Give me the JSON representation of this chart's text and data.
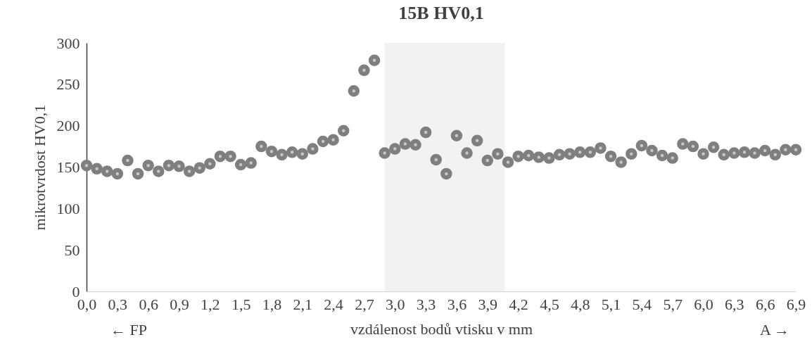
{
  "chart_data": {
    "type": "scatter",
    "title": "15B HV0,1",
    "xlabel": "vzdálenost bodů vtisku v mm",
    "ylabel": "mikrotvrdost HV0,1",
    "annotations": [
      "← FP",
      "A →"
    ],
    "x": [
      0,
      0.1,
      0.2,
      0.3,
      0.4,
      0.5,
      0.6,
      0.7,
      0.8,
      0.9,
      1,
      1.1,
      1.2,
      1.3,
      1.4,
      1.5,
      1.6,
      1.7,
      1.8,
      1.9,
      2,
      2.1,
      2.2,
      2.3,
      2.4,
      2.5,
      2.6,
      2.7,
      2.8,
      2.9,
      3,
      3.1,
      3.2,
      3.3,
      3.4,
      3.5,
      3.6,
      3.7,
      3.8,
      3.9,
      4,
      4.1,
      4.2,
      4.3,
      4.4,
      4.5,
      4.6,
      4.7,
      4.8,
      4.9,
      5,
      5.1,
      5.2,
      5.3,
      5.4,
      5.5,
      5.6,
      5.7,
      5.8,
      5.9,
      6,
      6.1,
      6.2,
      6.3,
      6.4,
      6.5,
      6.6,
      6.7,
      6.8,
      6.9
    ],
    "series": [
      {
        "color": "#7f7f7f",
        "values": [
          152,
          148,
          145,
          142,
          158,
          142,
          152,
          145,
          152,
          151,
          145,
          149,
          154,
          163,
          163,
          153,
          155,
          175,
          169,
          165,
          168,
          166,
          172,
          181,
          183,
          194,
          242,
          267,
          279,
          167,
          172,
          178,
          177,
          192,
          159,
          142,
          188,
          167,
          182,
          158,
          166,
          156,
          163,
          164,
          162,
          161,
          165,
          166,
          168,
          168,
          173,
          163,
          156,
          166,
          176,
          170,
          164,
          161,
          178,
          175,
          166,
          174,
          165,
          167,
          168,
          167,
          170,
          165,
          171,
          171
        ]
      }
    ],
    "bands": [
      {
        "axis": "x",
        "from": 2.9,
        "to": 4.07,
        "color": "#f2f2f2"
      }
    ],
    "xlim": [
      0,
      6.9
    ],
    "xticks": [
      {
        "value": 0,
        "label": "0,0"
      },
      {
        "value": 0.3,
        "label": "0,3"
      },
      {
        "value": 0.6,
        "label": "0,6"
      },
      {
        "value": 0.9,
        "label": "0,9"
      },
      {
        "value": 1.2,
        "label": "1,2"
      },
      {
        "value": 1.5,
        "label": "1,5"
      },
      {
        "value": 1.8,
        "label": "1,8"
      },
      {
        "value": 2.1,
        "label": "2,1"
      },
      {
        "value": 2.4,
        "label": "2,4"
      },
      {
        "value": 2.7,
        "label": "2,7"
      },
      {
        "value": 3,
        "label": "3,0"
      },
      {
        "value": 3.3,
        "label": "3,3"
      },
      {
        "value": 3.6,
        "label": "3,6"
      },
      {
        "value": 3.9,
        "label": "3,9"
      },
      {
        "value": 4.2,
        "label": "4,2"
      },
      {
        "value": 4.5,
        "label": "4,5"
      },
      {
        "value": 4.8,
        "label": "4,8"
      },
      {
        "value": 5.1,
        "label": "5,1"
      },
      {
        "value": 5.4,
        "label": "5,4"
      },
      {
        "value": 5.7,
        "label": "5,7"
      },
      {
        "value": 6,
        "label": "6,0"
      },
      {
        "value": 6.3,
        "label": "6,3"
      },
      {
        "value": 6.6,
        "label": "6,6"
      },
      {
        "value": 6.9,
        "label": "6,9"
      }
    ],
    "ylim": [
      0,
      300
    ],
    "yticks": [
      0,
      50,
      100,
      150,
      200,
      250,
      300
    ],
    "marker": "circle",
    "grid": false
  }
}
